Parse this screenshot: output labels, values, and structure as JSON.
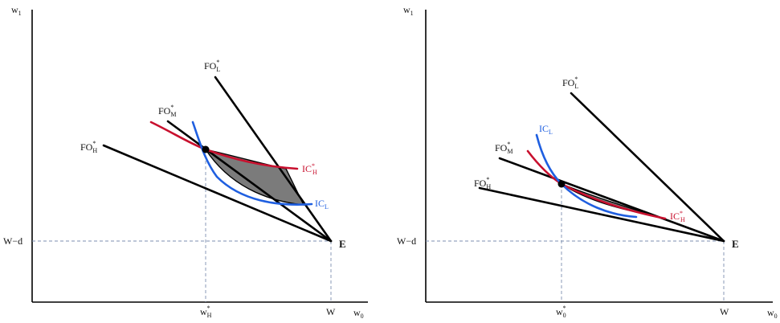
{
  "left_panel": {
    "y_axis": "w",
    "y_axis_sub": "1",
    "x_axis": "w",
    "x_axis_sub": "0",
    "w_minus_d": "W−d",
    "w_label": "W",
    "endowment": "E",
    "w0_star": "w",
    "w0_star_sup": "*",
    "w0_star_sub": "H",
    "fo_l": "FO",
    "fo_l_sup": "*",
    "fo_l_sub": "L",
    "fo_m": "FO",
    "fo_m_sup": "*",
    "fo_m_sub": "M",
    "fo_h": "FO",
    "fo_h_sup": "*",
    "fo_h_sub": "H",
    "ic_h": "IC",
    "ic_h_sup": "*",
    "ic_h_sub": "H",
    "ic_l": "IC",
    "ic_l_sub": "L"
  },
  "right_panel": {
    "y_axis": "w",
    "y_axis_sub": "1",
    "x_axis": "w",
    "x_axis_sub": "0",
    "w_minus_d": "W−d",
    "w_label": "W",
    "endowment": "E",
    "w0_star": "w",
    "w0_star_sup": "*",
    "w0_star_sub": "0",
    "fo_l": "FO",
    "fo_l_sup": "*",
    "fo_l_sub": "L",
    "fo_m": "FO",
    "fo_m_sup": "*",
    "fo_m_sub": "M",
    "fo_h": "FO",
    "fo_h_sup": "*",
    "fo_h_sub": "H",
    "ic_h": "IC",
    "ic_h_sup": "*",
    "ic_h_sub": "H",
    "ic_l": "IC",
    "ic_l_sub": "L"
  },
  "colors": {
    "ic_low": "#1f5fe0",
    "ic_high": "#c8102e",
    "shaded_region": "#7b7b7b",
    "guide_lines": "#7d8fb0"
  }
}
